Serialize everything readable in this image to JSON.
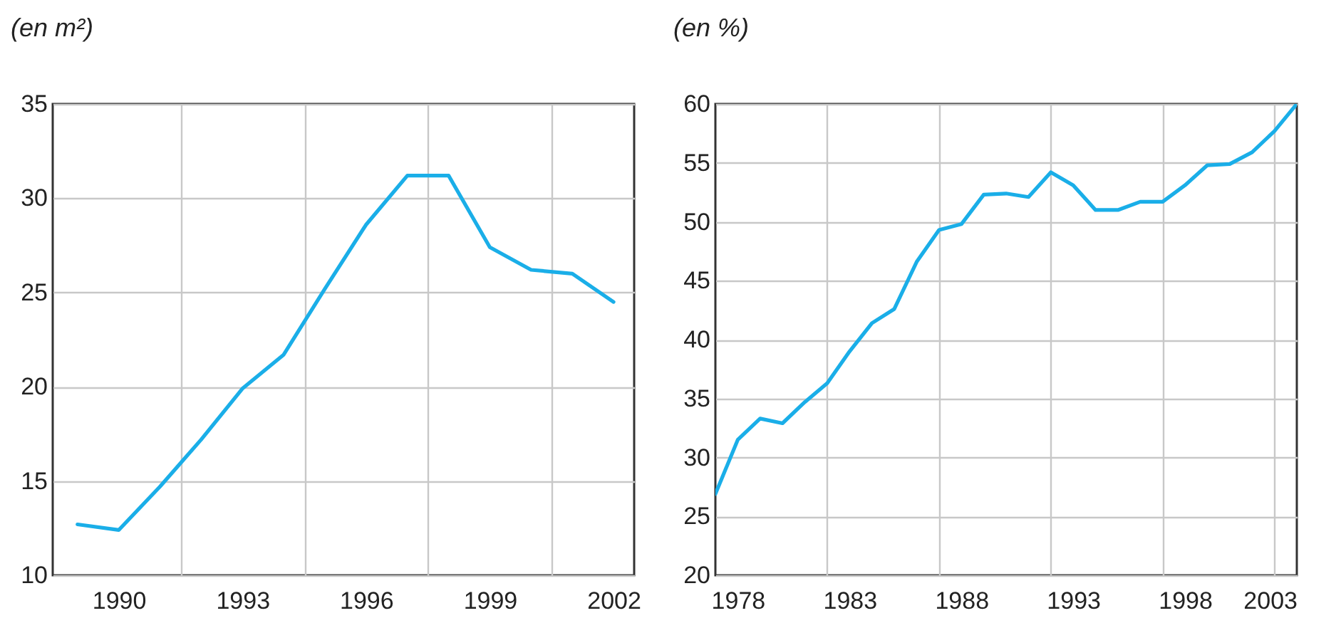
{
  "chart_data": [
    {
      "type": "line",
      "ylabel": "(en m²)",
      "x": [
        1989,
        1990,
        1991,
        1992,
        1993,
        1994,
        1995,
        1996,
        1997,
        1998,
        1999,
        2000,
        2001,
        2002
      ],
      "series": [
        {
          "color": "#1aaee8",
          "values": [
            12.7,
            12.4,
            14.7,
            17.2,
            19.9,
            21.7,
            25.2,
            28.6,
            31.2,
            31.2,
            27.4,
            26.2,
            26.0,
            24.5
          ]
        }
      ],
      "xlim": [
        1988.4,
        2002.5
      ],
      "xticks": [
        1990,
        {
          "value": 1991.5,
          "label": null
        },
        1993,
        {
          "value": 1994.5,
          "label": null
        },
        1996,
        {
          "value": 1997.5,
          "label": null
        },
        1999,
        {
          "value": 2000.5,
          "label": null
        },
        2002
      ],
      "ylim": [
        10,
        35
      ],
      "yticks": [
        10,
        15,
        20,
        25,
        30,
        35
      ],
      "grid": true,
      "line_style": "solid"
    },
    {
      "type": "line",
      "ylabel": "(en %)",
      "x": [
        1977,
        1978,
        1979,
        1980,
        1981,
        1982,
        1983,
        1984,
        1985,
        1986,
        1987,
        1988,
        1989,
        1990,
        1991,
        1992,
        1993,
        1994,
        1995,
        1996,
        1997,
        1998,
        1999,
        2000,
        2001,
        2002,
        2003
      ],
      "series": [
        {
          "color": "#1aaee8",
          "values": [
            26.9,
            31.5,
            33.3,
            32.9,
            34.7,
            36.3,
            39.0,
            41.4,
            42.6,
            46.6,
            49.3,
            49.8,
            52.3,
            52.4,
            52.1,
            54.2,
            53.1,
            51.0,
            51.0,
            51.7,
            51.7,
            53.1,
            54.8,
            54.9,
            55.9,
            57.7,
            60.0
          ]
        }
      ],
      "xlim": [
        1977,
        2003
      ],
      "xticks": [
        1978,
        {
          "value": 1982,
          "label": null
        },
        1983,
        {
          "value": 1987,
          "label": null
        },
        1988,
        {
          "value": 1992,
          "label": null
        },
        1993,
        {
          "value": 1997,
          "label": null
        },
        1998,
        {
          "value": 2002,
          "label": null
        },
        2003
      ],
      "ylim": [
        20,
        60
      ],
      "yticks": [
        20,
        25,
        30,
        35,
        40,
        45,
        50,
        55,
        60
      ],
      "grid": true,
      "line_style": "solid"
    }
  ]
}
